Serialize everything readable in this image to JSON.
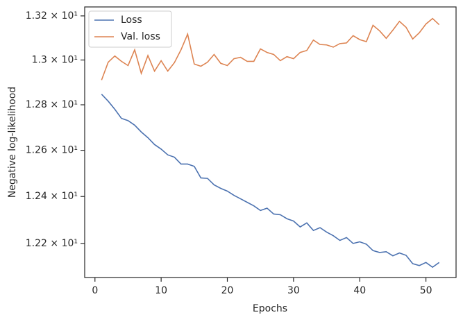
{
  "chart_data": {
    "type": "line",
    "xlabel": "Epochs",
    "ylabel": "Negative log-likelihood",
    "x": [
      1,
      2,
      3,
      4,
      5,
      6,
      7,
      8,
      9,
      10,
      11,
      12,
      13,
      14,
      15,
      16,
      17,
      18,
      19,
      20,
      21,
      22,
      23,
      24,
      25,
      26,
      27,
      28,
      29,
      30,
      31,
      32,
      33,
      34,
      35,
      36,
      37,
      38,
      39,
      40,
      41,
      42,
      43,
      44,
      45,
      46,
      47,
      48,
      49,
      50,
      51,
      52
    ],
    "series": [
      {
        "name": "Loss",
        "color": "#4c72b0",
        "values": [
          12.847,
          12.816,
          12.78,
          12.74,
          12.73,
          12.71,
          12.68,
          12.655,
          12.625,
          12.605,
          12.58,
          12.57,
          12.54,
          12.54,
          12.53,
          12.48,
          12.478,
          12.45,
          12.435,
          12.423,
          12.405,
          12.39,
          12.375,
          12.36,
          12.34,
          12.35,
          12.325,
          12.322,
          12.305,
          12.295,
          12.27,
          12.287,
          12.255,
          12.267,
          12.248,
          12.233,
          12.213,
          12.225,
          12.2,
          12.207,
          12.197,
          12.17,
          12.162,
          12.165,
          12.148,
          12.16,
          12.15,
          12.115,
          12.107,
          12.12,
          12.1,
          12.12
        ]
      },
      {
        "name": "Val. loss",
        "color": "#dd8452",
        "values": [
          12.91,
          12.99,
          13.018,
          12.994,
          12.975,
          13.046,
          12.94,
          13.02,
          12.95,
          12.997,
          12.95,
          12.988,
          13.046,
          13.117,
          12.982,
          12.972,
          12.99,
          13.025,
          12.985,
          12.975,
          13.006,
          13.012,
          12.994,
          12.994,
          13.05,
          13.034,
          13.025,
          12.997,
          13.015,
          13.006,
          13.034,
          13.043,
          13.09,
          13.07,
          13.068,
          13.058,
          13.074,
          13.077,
          13.11,
          13.092,
          13.083,
          13.157,
          13.132,
          13.098,
          13.135,
          13.175,
          13.148,
          13.095,
          13.123,
          13.163,
          13.188,
          13.16
        ]
      }
    ],
    "xlim": [
      -1.55,
      54.55
    ],
    "xticks": [
      0,
      10,
      20,
      30,
      40,
      50
    ],
    "ylim": [
      12.057,
      13.241
    ],
    "ylog": true,
    "yticks": [
      {
        "value": 12.2,
        "label": "1.22 × 10¹"
      },
      {
        "value": 12.4,
        "label": "1.24 × 10¹"
      },
      {
        "value": 12.6,
        "label": "1.26 × 10¹"
      },
      {
        "value": 12.8,
        "label": "1.28 × 10¹"
      },
      {
        "value": 13.0,
        "label": "1.3 × 10¹"
      },
      {
        "value": 13.2,
        "label": "1.32 × 10¹"
      }
    ],
    "legend": "upper left",
    "grid": false
  }
}
